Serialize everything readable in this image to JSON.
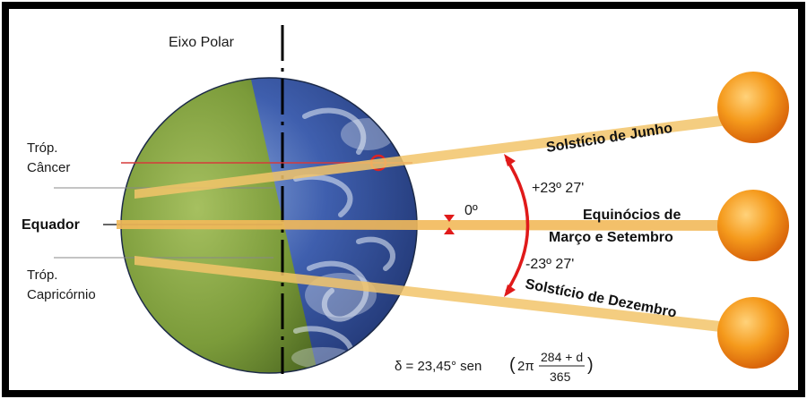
{
  "labels": {
    "polar_axis": "Eixo Polar",
    "tropic_cancer_line1": "Tróp.",
    "tropic_cancer_line2": "Câncer",
    "equator": "Equador",
    "tropic_capricorn_line1": "Tróp.",
    "tropic_capricorn_line2": "Capricórnio",
    "june_solstice": "Solstício de Junho",
    "equinoxes_line1": "Equinócios de",
    "equinoxes_line2": "Março e Setembro",
    "december_solstice": "Solstício de Dezembro",
    "angle_plus": "+23º 27'",
    "angle_zero": "0º",
    "angle_minus": "-23º 27'"
  },
  "formula": {
    "lhs": "δ = 23,45° sen",
    "two_pi": "2π",
    "numerator": "284 + d",
    "denominator": "365"
  },
  "colors": {
    "frame": "#000000",
    "earth_dark_side": "#7a9a3a",
    "earth_day_side": "#2f4f9a",
    "ray": "#f2c46a",
    "tropic_line": "#d63a3a",
    "angle_arc": "#e01a1a",
    "sun": "#f08a10"
  }
}
